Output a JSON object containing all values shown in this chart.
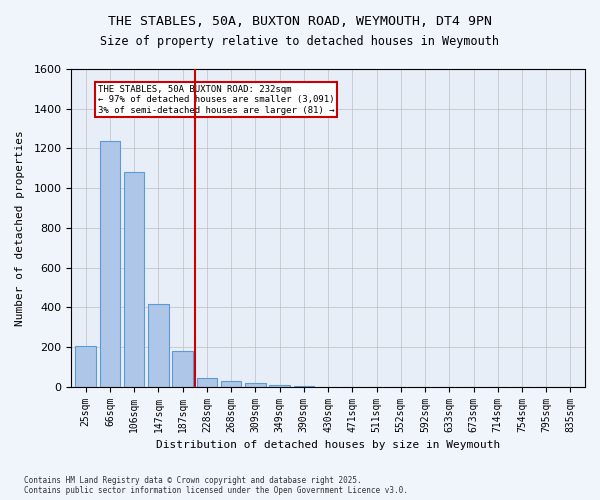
{
  "title_line1": "THE STABLES, 50A, BUXTON ROAD, WEYMOUTH, DT4 9PN",
  "title_line2": "Size of property relative to detached houses in Weymouth",
  "xlabel": "Distribution of detached houses by size in Weymouth",
  "ylabel": "Number of detached properties",
  "categories": [
    "25sqm",
    "66sqm",
    "106sqm",
    "147sqm",
    "187sqm",
    "228sqm",
    "268sqm",
    "309sqm",
    "349sqm",
    "390sqm",
    "430sqm",
    "471sqm",
    "511sqm",
    "552sqm",
    "592sqm",
    "633sqm",
    "673sqm",
    "714sqm",
    "754sqm",
    "795sqm",
    "835sqm"
  ],
  "values": [
    205,
    1235,
    1080,
    415,
    178,
    45,
    27,
    18,
    10,
    5,
    0,
    0,
    0,
    0,
    0,
    0,
    0,
    0,
    0,
    0,
    0
  ],
  "bar_color": "#aec6e8",
  "bar_edge_color": "#5b9bd5",
  "vline_x": 4.5,
  "vline_color": "#cc0000",
  "annotation_text": "THE STABLES, 50A BUXTON ROAD: 232sqm\n← 97% of detached houses are smaller (3,091)\n3% of semi-detached houses are larger (81) →",
  "annotation_box_color": "#cc0000",
  "annotation_text_color": "#000000",
  "ylim": [
    0,
    1600
  ],
  "yticks": [
    0,
    200,
    400,
    600,
    800,
    1000,
    1200,
    1400,
    1600
  ],
  "grid_color": "#c0c0c0",
  "bg_color": "#e8eef7",
  "footnote": "Contains HM Land Registry data © Crown copyright and database right 2025.\nContains public sector information licensed under the Open Government Licence v3.0."
}
